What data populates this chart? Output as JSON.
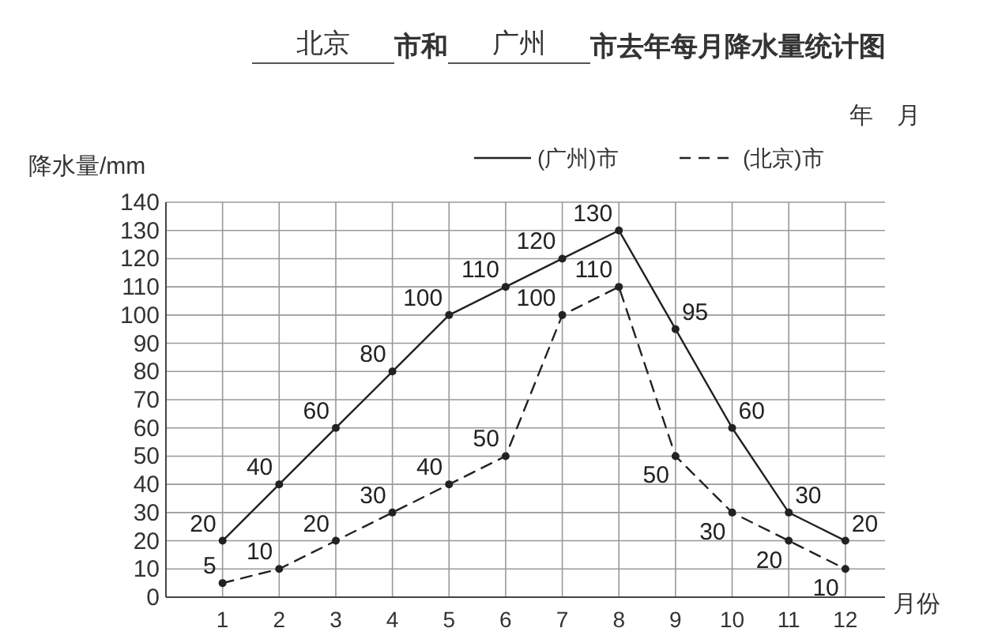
{
  "chart_data": {
    "type": "line",
    "title": "北京 市和 广州 市去年每月降水量统计图",
    "xlabel": "月份",
    "ylabel": "降水量/mm",
    "annotations": [
      "年　月"
    ],
    "x": [
      1,
      2,
      3,
      4,
      5,
      6,
      7,
      8,
      9,
      10,
      11,
      12
    ],
    "xlim": [
      0,
      12.7
    ],
    "xticks": [
      1,
      2,
      3,
      4,
      5,
      6,
      7,
      8,
      9,
      10,
      11,
      12
    ],
    "ylim": [
      0,
      140
    ],
    "yticks": [
      0,
      10,
      20,
      30,
      40,
      50,
      60,
      70,
      80,
      90,
      100,
      110,
      120,
      130,
      140
    ],
    "grid": true,
    "legend": "top right",
    "marker": "circle",
    "data_labels": true,
    "series": [
      {
        "name": "(广州)市",
        "color": "#222222",
        "line_style": "solid",
        "values": [
          20,
          40,
          60,
          80,
          100,
          110,
          120,
          130,
          95,
          60,
          30,
          20
        ]
      },
      {
        "name": "(北京)市",
        "color": "#222222",
        "line_style": "dashed",
        "values": [
          5,
          10,
          20,
          30,
          40,
          50,
          100,
          110,
          50,
          30,
          20,
          10
        ]
      }
    ]
  }
}
